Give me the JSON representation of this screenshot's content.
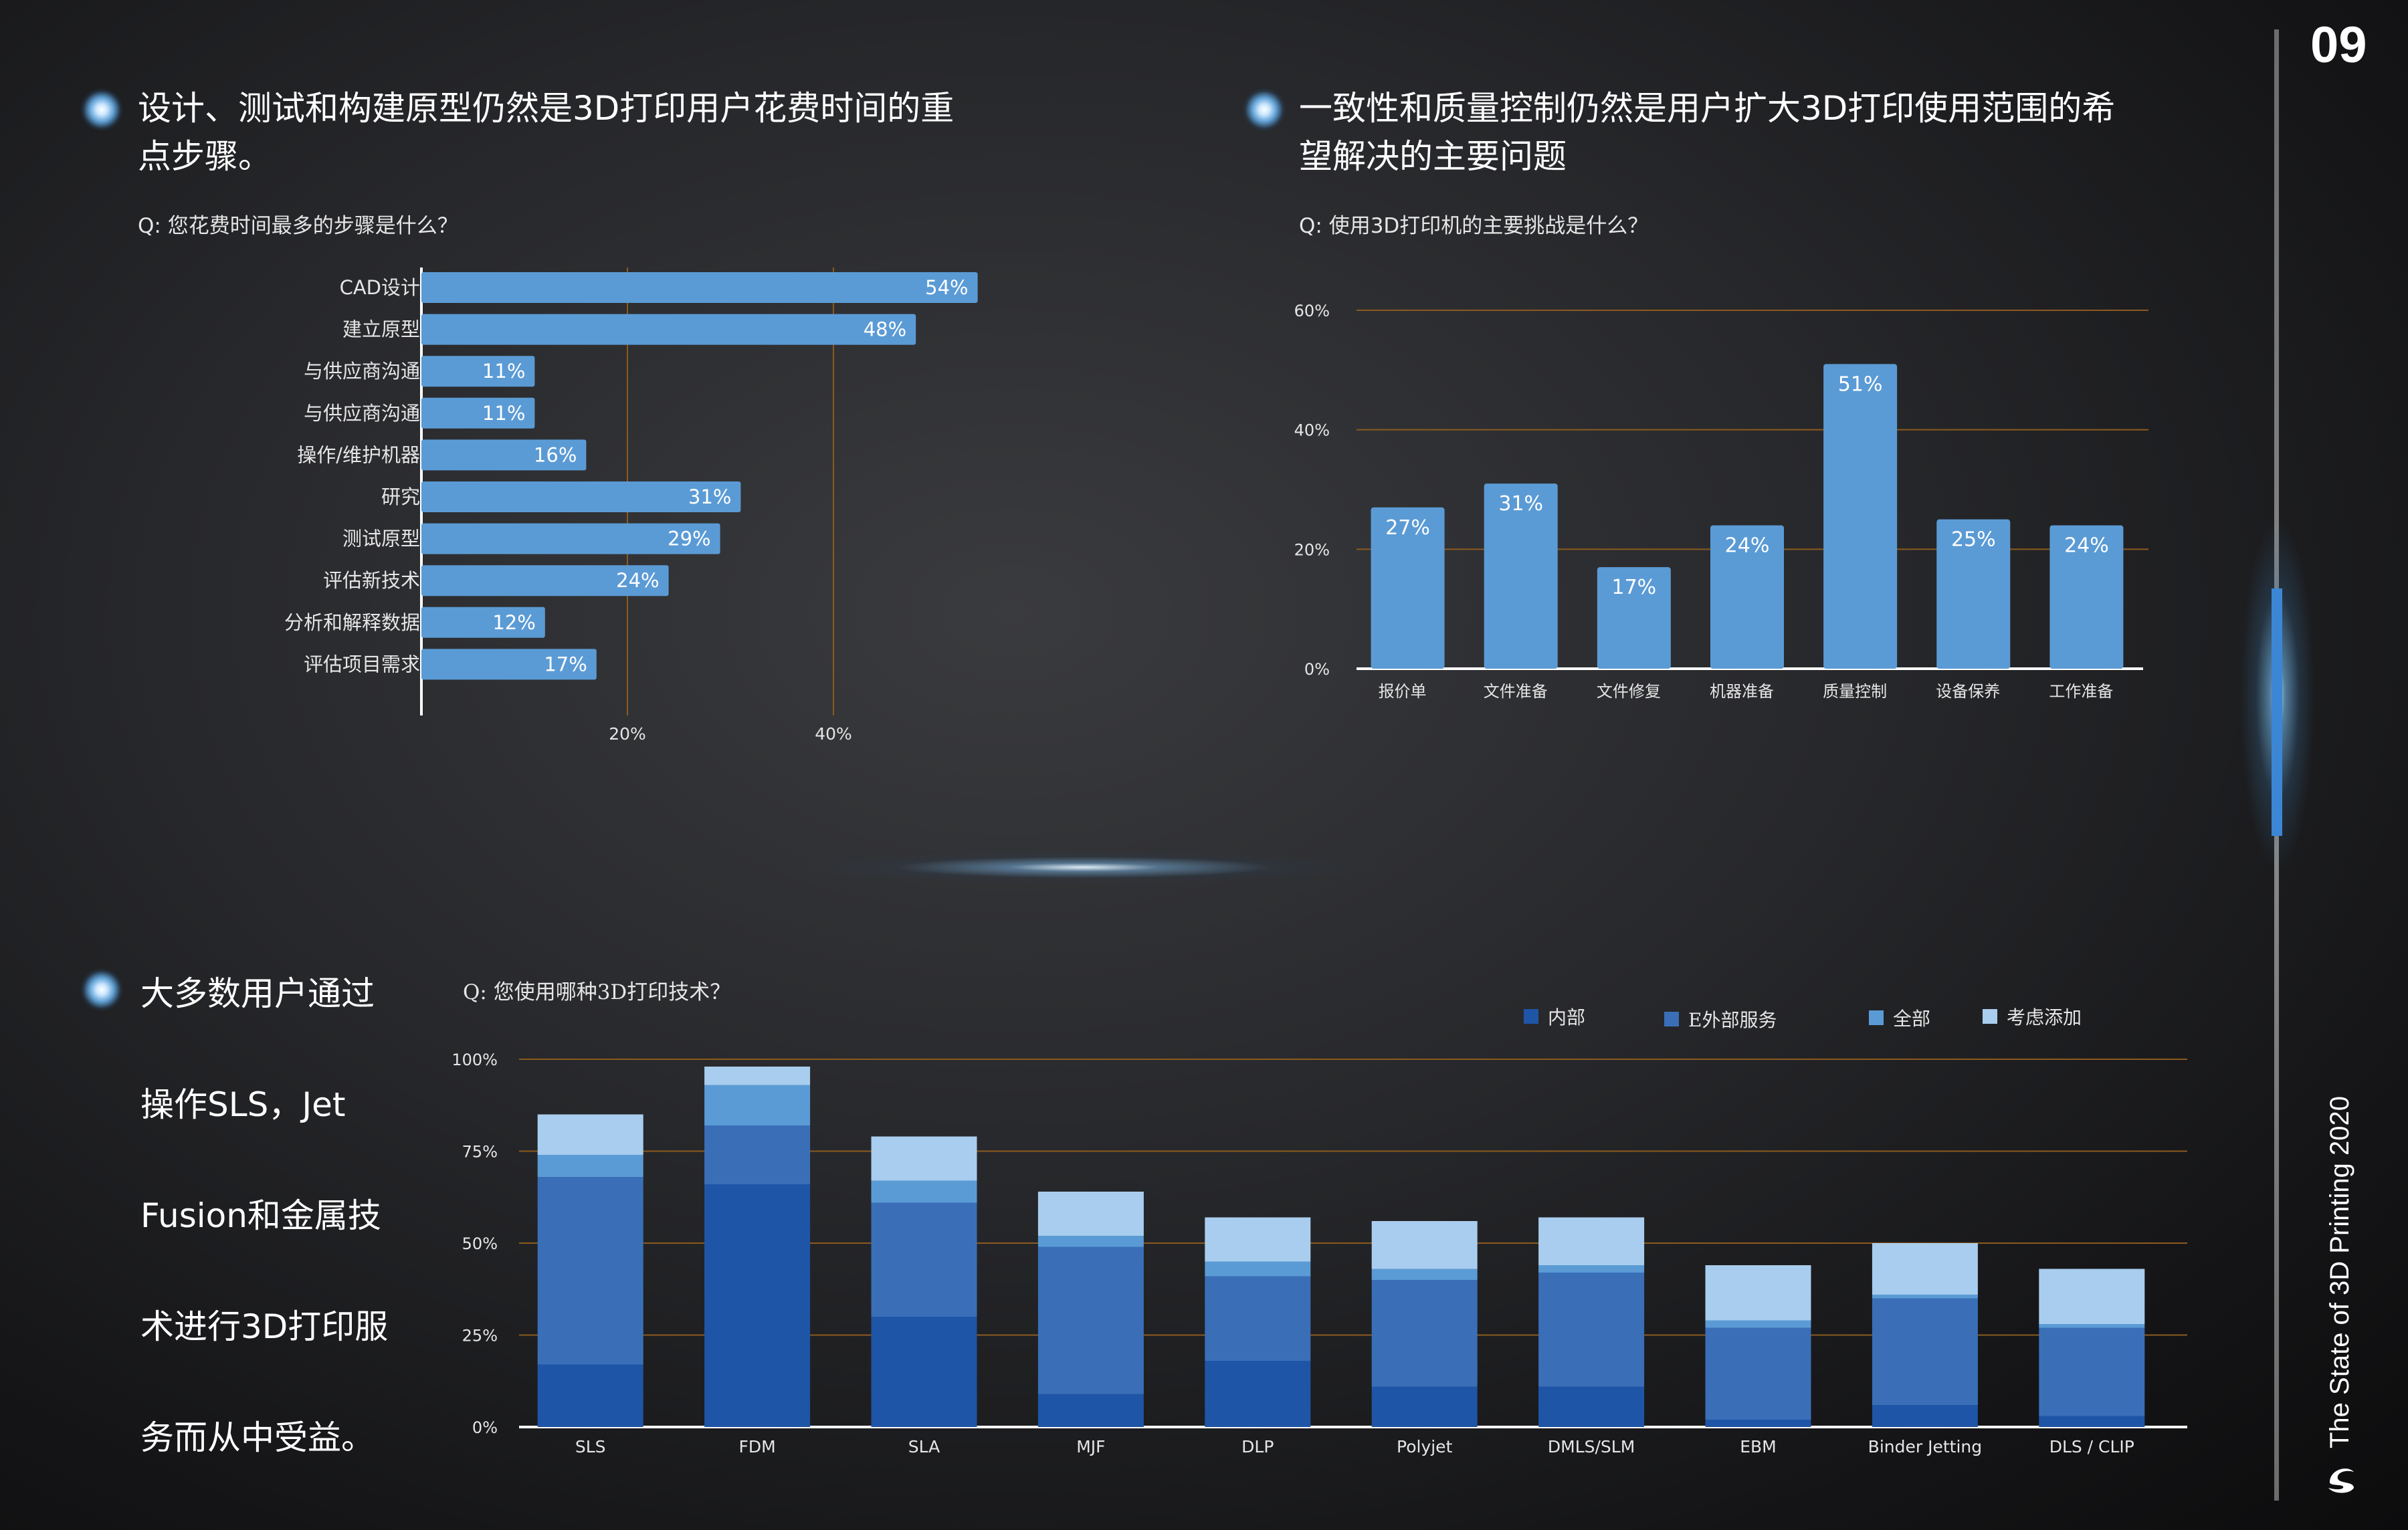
{
  "page": {
    "number": "09",
    "vertical_title": "The State of 3D Printing 2020"
  },
  "sections": {
    "time_spent": {
      "heading_line1": "设计、测试和构建原型仍然是3D打印用户花费时间的重",
      "heading_line2": "点步骤。",
      "question": "Q: 您花费时间最多的步骤是什么？"
    },
    "challenges": {
      "heading_line1": "一致性和质量控制仍然是用户扩大3D打印使用范围的希",
      "heading_line2": "望解决的主要问题",
      "question": "Q: 使用3D打印机的主要挑战是什么？"
    },
    "technologies": {
      "side_lines": [
        "大多数用户通过",
        "操作SLS，Jet",
        "Fusion和金属技",
        "术进行3D打印服",
        "务而从中受益。"
      ],
      "question": "Q: 您使用哪种3D打印技术？"
    }
  },
  "colors": {
    "bar": "#5b9bd5",
    "grid": "#8b5a1e",
    "series": [
      "#1f55a6",
      "#3a6fb8",
      "#5b9bd5",
      "#a9cdee"
    ]
  },
  "chart_data": [
    {
      "type": "bar",
      "orientation": "horizontal",
      "categories": [
        "CAD设计",
        "建立原型",
        "与供应商沟通",
        "与供应商沟通",
        "操作/维护机器",
        "研究",
        "测试原型",
        "评估新技术",
        "分析和解释数据",
        "评估项目需求"
      ],
      "values": [
        54,
        48,
        11,
        11,
        16,
        31,
        29,
        24,
        12,
        17
      ],
      "value_labels": [
        "54%",
        "48%",
        "11%",
        "11%",
        "16%",
        "31%",
        "29%",
        "24%",
        "12%",
        "17%"
      ],
      "x_ticks": [
        {
          "value": 20,
          "label": "20%"
        },
        {
          "value": 40,
          "label": "40%"
        }
      ],
      "xlim": [
        0,
        60
      ],
      "grid": true
    },
    {
      "type": "bar",
      "categories": [
        "报价单",
        "文件准备",
        "文件修复",
        "机器准备",
        "质量控制",
        "设备保养",
        "工作准备"
      ],
      "values": [
        27,
        31,
        17,
        24,
        51,
        25,
        24
      ],
      "value_labels": [
        "27%",
        "31%",
        "17%",
        "24%",
        "51%",
        "25%",
        "24%"
      ],
      "y_ticks": [
        {
          "value": 0,
          "label": "0%"
        },
        {
          "value": 20,
          "label": "20%"
        },
        {
          "value": 40,
          "label": "40%"
        },
        {
          "value": 60,
          "label": "60%"
        }
      ],
      "ylim": [
        0,
        60
      ],
      "grid": true
    },
    {
      "type": "bar",
      "stacked": true,
      "categories": [
        "SLS",
        "FDM",
        "SLA",
        "MJF",
        "DLP",
        "Polyjet",
        "DMLS/SLM",
        "EBM",
        "Binder Jetting",
        "DLS / CLIP"
      ],
      "series": [
        {
          "name": "内部",
          "values": [
            17,
            66,
            30,
            9,
            18,
            11,
            11,
            2,
            6,
            3
          ]
        },
        {
          "name": "E外部服务",
          "values": [
            51,
            16,
            31,
            40,
            23,
            29,
            31,
            25,
            29,
            24
          ]
        },
        {
          "name": "全部",
          "values": [
            6,
            11,
            6,
            3,
            4,
            3,
            2,
            2,
            1,
            1
          ]
        },
        {
          "name": "考虑添加",
          "values": [
            11,
            5,
            12,
            12,
            12,
            13,
            13,
            15,
            14,
            15
          ]
        }
      ],
      "y_ticks": [
        {
          "value": 0,
          "label": "0%"
        },
        {
          "value": 25,
          "label": "25%"
        },
        {
          "value": 50,
          "label": "50%"
        },
        {
          "value": 75,
          "label": "75%"
        },
        {
          "value": 100,
          "label": "100%"
        }
      ],
      "ylim": [
        0,
        100
      ],
      "legend": "top-right",
      "grid": true
    }
  ]
}
